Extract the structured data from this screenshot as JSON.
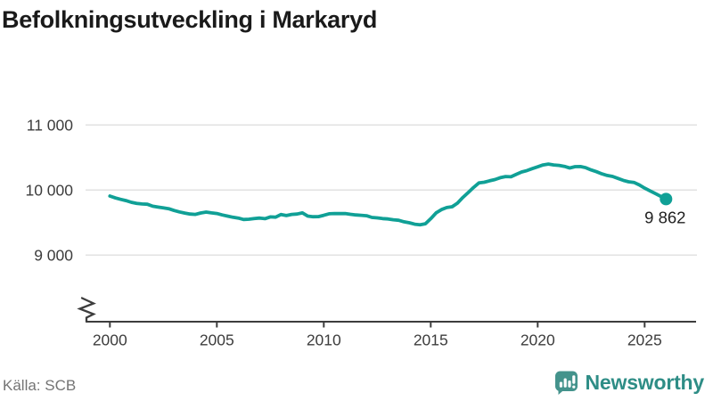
{
  "title": "Befolkningsutveckling i Markaryd",
  "source": "Källa: SCB",
  "branding": {
    "logo_text": "Newsworthy",
    "logo_icon": "newsworthy-bars-icon"
  },
  "end_label": "9 862",
  "colors": {
    "line": "#10a096",
    "grid": "#e2e2e2",
    "axis": "#3d3d3d",
    "title_text": "#1a1a1a",
    "tick_text": "#3d3d3d",
    "source_text": "#747474",
    "logo_icon": "#44938c",
    "logo_text": "#2e8d86",
    "end_label_text": "#1f1f1f"
  },
  "chart_data": {
    "type": "line",
    "title": "Befolkningsutveckling i Markaryd",
    "xlabel": "",
    "ylabel": "",
    "grid": "horizontal",
    "axis_break": true,
    "legend": "none",
    "xlim": [
      1999,
      2027.5
    ],
    "ylim": [
      9000,
      11000
    ],
    "yticks": [
      {
        "value": 11000,
        "label": "11 000"
      },
      {
        "value": 10000,
        "label": "10 000"
      },
      {
        "value": 9000,
        "label": "9 000"
      }
    ],
    "xticks": [
      {
        "value": 2000,
        "label": "2000"
      },
      {
        "value": 2005,
        "label": "2005"
      },
      {
        "value": 2010,
        "label": "2010"
      },
      {
        "value": 2015,
        "label": "2015"
      },
      {
        "value": 2020,
        "label": "2020"
      },
      {
        "value": 2025,
        "label": "2025"
      }
    ],
    "series": [
      {
        "name": "Befolkning",
        "end_value": 9862,
        "points": [
          [
            2000.0,
            9908
          ],
          [
            2000.25,
            9880
          ],
          [
            2000.5,
            9858
          ],
          [
            2000.75,
            9838
          ],
          [
            2001.0,
            9812
          ],
          [
            2001.25,
            9796
          ],
          [
            2001.5,
            9786
          ],
          [
            2001.75,
            9782
          ],
          [
            2002.0,
            9752
          ],
          [
            2002.25,
            9738
          ],
          [
            2002.5,
            9726
          ],
          [
            2002.75,
            9714
          ],
          [
            2003.0,
            9686
          ],
          [
            2003.25,
            9664
          ],
          [
            2003.5,
            9646
          ],
          [
            2003.75,
            9632
          ],
          [
            2004.0,
            9626
          ],
          [
            2004.25,
            9648
          ],
          [
            2004.5,
            9662
          ],
          [
            2004.75,
            9650
          ],
          [
            2005.0,
            9640
          ],
          [
            2005.25,
            9618
          ],
          [
            2005.5,
            9600
          ],
          [
            2005.75,
            9582
          ],
          [
            2006.0,
            9570
          ],
          [
            2006.25,
            9548
          ],
          [
            2006.5,
            9552
          ],
          [
            2006.75,
            9562
          ],
          [
            2007.0,
            9570
          ],
          [
            2007.25,
            9560
          ],
          [
            2007.5,
            9588
          ],
          [
            2007.75,
            9584
          ],
          [
            2008.0,
            9624
          ],
          [
            2008.25,
            9608
          ],
          [
            2008.5,
            9626
          ],
          [
            2008.75,
            9632
          ],
          [
            2009.0,
            9650
          ],
          [
            2009.25,
            9600
          ],
          [
            2009.5,
            9590
          ],
          [
            2009.75,
            9592
          ],
          [
            2010.0,
            9612
          ],
          [
            2010.25,
            9636
          ],
          [
            2010.5,
            9640
          ],
          [
            2010.75,
            9638
          ],
          [
            2011.0,
            9640
          ],
          [
            2011.25,
            9628
          ],
          [
            2011.5,
            9618
          ],
          [
            2011.75,
            9612
          ],
          [
            2012.0,
            9606
          ],
          [
            2012.25,
            9580
          ],
          [
            2012.5,
            9572
          ],
          [
            2012.75,
            9562
          ],
          [
            2013.0,
            9556
          ],
          [
            2013.25,
            9544
          ],
          [
            2013.5,
            9536
          ],
          [
            2013.75,
            9512
          ],
          [
            2014.0,
            9497
          ],
          [
            2014.25,
            9476
          ],
          [
            2014.5,
            9466
          ],
          [
            2014.75,
            9482
          ],
          [
            2015.0,
            9560
          ],
          [
            2015.25,
            9650
          ],
          [
            2015.5,
            9700
          ],
          [
            2015.75,
            9732
          ],
          [
            2016.0,
            9744
          ],
          [
            2016.25,
            9800
          ],
          [
            2016.5,
            9886
          ],
          [
            2016.75,
            9962
          ],
          [
            2017.0,
            10040
          ],
          [
            2017.25,
            10110
          ],
          [
            2017.5,
            10120
          ],
          [
            2017.75,
            10142
          ],
          [
            2018.0,
            10162
          ],
          [
            2018.25,
            10190
          ],
          [
            2018.5,
            10208
          ],
          [
            2018.75,
            10204
          ],
          [
            2019.0,
            10242
          ],
          [
            2019.25,
            10278
          ],
          [
            2019.5,
            10300
          ],
          [
            2019.75,
            10330
          ],
          [
            2020.0,
            10358
          ],
          [
            2020.25,
            10386
          ],
          [
            2020.5,
            10400
          ],
          [
            2020.75,
            10386
          ],
          [
            2021.0,
            10380
          ],
          [
            2021.25,
            10364
          ],
          [
            2021.5,
            10340
          ],
          [
            2021.75,
            10360
          ],
          [
            2022.0,
            10362
          ],
          [
            2022.25,
            10344
          ],
          [
            2022.5,
            10310
          ],
          [
            2022.75,
            10282
          ],
          [
            2023.0,
            10250
          ],
          [
            2023.25,
            10224
          ],
          [
            2023.5,
            10210
          ],
          [
            2023.75,
            10180
          ],
          [
            2024.0,
            10150
          ],
          [
            2024.25,
            10128
          ],
          [
            2024.5,
            10118
          ],
          [
            2024.75,
            10080
          ],
          [
            2025.0,
            10030
          ],
          [
            2025.25,
            9988
          ],
          [
            2025.5,
            9946
          ],
          [
            2025.75,
            9904
          ],
          [
            2026.0,
            9862
          ]
        ]
      }
    ]
  }
}
